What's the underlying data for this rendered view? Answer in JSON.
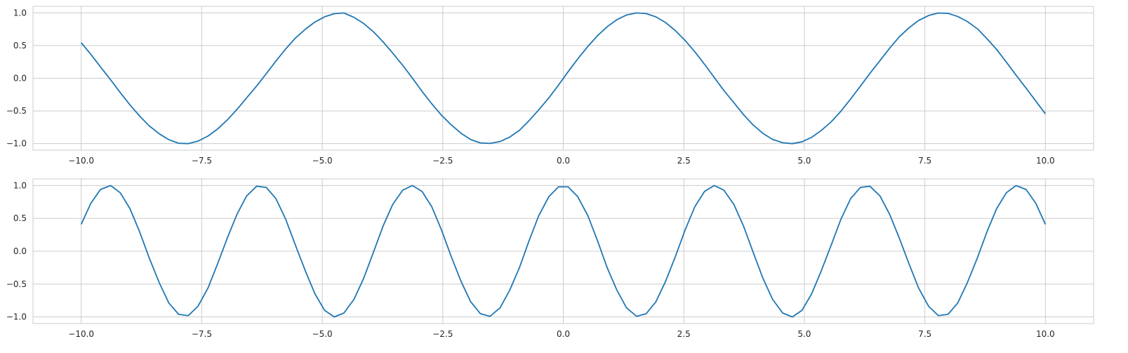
{
  "chart_data": [
    {
      "type": "line",
      "title": "",
      "xlabel": "",
      "ylabel": "",
      "xlim": [
        -11,
        11
      ],
      "ylim": [
        -1.1,
        1.1
      ],
      "xticks": [
        -10,
        -7.5,
        -5,
        -2.5,
        0,
        2.5,
        5,
        7.5,
        10
      ],
      "xtick_labels": [
        "−10.0",
        "−7.5",
        "−5.0",
        "−2.5",
        "0.0",
        "2.5",
        "5.0",
        "7.5",
        "10.0"
      ],
      "yticks": [
        -1,
        -0.5,
        0,
        0.5,
        1
      ],
      "ytick_labels": [
        "−1.0",
        "−0.5",
        "0.0",
        "0.5",
        "1.0"
      ],
      "grid": true,
      "series": [
        {
          "color": "#1f77b4",
          "x": [
            -10,
            -9.8,
            -9.6,
            -9.39,
            -9.19,
            -8.99,
            -8.79,
            -8.59,
            -8.38,
            -8.18,
            -7.98,
            -7.78,
            -7.58,
            -7.37,
            -7.17,
            -6.97,
            -6.77,
            -6.57,
            -6.36,
            -6.16,
            -5.96,
            -5.76,
            -5.56,
            -5.35,
            -5.15,
            -4.95,
            -4.75,
            -4.55,
            -4.34,
            -4.14,
            -3.94,
            -3.74,
            -3.54,
            -3.33,
            -3.13,
            -2.93,
            -2.73,
            -2.53,
            -2.32,
            -2.12,
            -1.92,
            -1.72,
            -1.52,
            -1.31,
            -1.11,
            -0.91,
            -0.71,
            -0.51,
            -0.3,
            -0.1,
            0.1,
            0.3,
            0.51,
            0.71,
            0.91,
            1.11,
            1.31,
            1.52,
            1.72,
            1.92,
            2.12,
            2.32,
            2.53,
            2.73,
            2.93,
            3.13,
            3.33,
            3.54,
            3.74,
            3.94,
            4.14,
            4.34,
            4.55,
            4.75,
            4.95,
            5.15,
            5.35,
            5.56,
            5.76,
            5.96,
            6.16,
            6.36,
            6.57,
            6.77,
            6.97,
            7.17,
            7.37,
            7.58,
            7.78,
            7.98,
            8.18,
            8.38,
            8.59,
            8.79,
            8.99,
            9.19,
            9.39,
            9.6,
            9.8,
            10
          ],
          "y": [
            0.544,
            0.366,
            0.174,
            -0.024,
            -0.219,
            -0.406,
            -0.577,
            -0.727,
            -0.85,
            -0.94,
            -0.994,
            -1.0,
            -0.962,
            -0.884,
            -0.775,
            -0.638,
            -0.478,
            -0.301,
            -0.117,
            0.071,
            0.264,
            0.447,
            0.612,
            0.75,
            0.861,
            0.94,
            0.987,
            0.998,
            0.93,
            0.837,
            0.712,
            0.558,
            0.386,
            0.197,
            0.002,
            -0.2,
            -0.389,
            -0.563,
            -0.716,
            -0.842,
            -0.938,
            -0.989,
            -0.997,
            -0.967,
            -0.899,
            -0.797,
            -0.648,
            -0.484,
            -0.3,
            -0.105,
            0.1,
            0.296,
            0.487,
            0.651,
            0.788,
            0.895,
            0.967,
            0.999,
            0.989,
            0.939,
            0.853,
            0.731,
            0.576,
            0.403,
            0.213,
            0.013,
            -0.187,
            -0.375,
            -0.558,
            -0.716,
            -0.842,
            -0.935,
            -0.986,
            -1.0,
            -0.972,
            -0.904,
            -0.799,
            -0.664,
            -0.503,
            -0.317,
            -0.123,
            0.074,
            0.272,
            0.46,
            0.634,
            0.771,
            0.884,
            0.96,
            0.998,
            0.992,
            0.945,
            0.868,
            0.756,
            0.604,
            0.439,
            0.246,
            0.049,
            -0.152,
            -0.348,
            -0.544
          ]
        }
      ]
    },
    {
      "type": "line",
      "title": "",
      "xlabel": "",
      "ylabel": "",
      "xlim": [
        -11,
        11
      ],
      "ylim": [
        -1.1,
        1.1
      ],
      "xticks": [
        -10,
        -7.5,
        -5,
        -2.5,
        0,
        2.5,
        5,
        7.5,
        10
      ],
      "xtick_labels": [
        "−10.0",
        "−7.5",
        "−5.0",
        "−2.5",
        "0.0",
        "2.5",
        "5.0",
        "7.5",
        "10.0"
      ],
      "yticks": [
        -1,
        -0.5,
        0,
        0.5,
        1
      ],
      "ytick_labels": [
        "−1.0",
        "−0.5",
        "0.0",
        "0.5",
        "1.0"
      ],
      "grid": true,
      "series": [
        {
          "color": "#1f77b4",
          "x": [
            -10,
            -9.8,
            -9.6,
            -9.39,
            -9.19,
            -8.99,
            -8.79,
            -8.59,
            -8.38,
            -8.18,
            -7.98,
            -7.78,
            -7.58,
            -7.37,
            -7.17,
            -6.97,
            -6.77,
            -6.57,
            -6.36,
            -6.16,
            -5.96,
            -5.76,
            -5.56,
            -5.35,
            -5.15,
            -4.95,
            -4.75,
            -4.55,
            -4.34,
            -4.14,
            -3.94,
            -3.74,
            -3.54,
            -3.33,
            -3.13,
            -2.93,
            -2.73,
            -2.53,
            -2.32,
            -2.12,
            -1.92,
            -1.72,
            -1.52,
            -1.31,
            -1.11,
            -0.91,
            -0.71,
            -0.51,
            -0.3,
            -0.1,
            0.1,
            0.3,
            0.51,
            0.71,
            0.91,
            1.11,
            1.31,
            1.52,
            1.72,
            1.92,
            2.12,
            2.32,
            2.53,
            2.73,
            2.93,
            3.13,
            3.33,
            3.54,
            3.74,
            3.94,
            4.14,
            4.34,
            4.55,
            4.75,
            4.95,
            5.15,
            5.35,
            5.56,
            5.76,
            5.96,
            6.16,
            6.36,
            6.57,
            6.77,
            6.97,
            7.17,
            7.37,
            7.58,
            7.78,
            7.98,
            8.18,
            8.38,
            8.59,
            8.79,
            8.99,
            9.19,
            9.39,
            9.6,
            9.8,
            10
          ],
          "y": [
            0.41,
            0.73,
            0.94,
            1.0,
            0.89,
            0.65,
            0.3,
            -0.1,
            -0.48,
            -0.79,
            -0.96,
            -0.98,
            -0.84,
            -0.56,
            -0.19,
            0.2,
            0.56,
            0.84,
            0.99,
            0.97,
            0.8,
            0.49,
            0.1,
            -0.3,
            -0.65,
            -0.9,
            -1.0,
            -0.94,
            -0.73,
            -0.41,
            -0.02,
            0.38,
            0.71,
            0.93,
            1.0,
            0.91,
            0.68,
            0.33,
            -0.09,
            -0.46,
            -0.77,
            -0.95,
            -0.99,
            -0.86,
            -0.59,
            -0.25,
            0.16,
            0.54,
            0.83,
            0.98,
            0.98,
            0.83,
            0.54,
            0.16,
            -0.25,
            -0.59,
            -0.86,
            -0.99,
            -0.95,
            -0.77,
            -0.46,
            -0.09,
            0.33,
            0.68,
            0.91,
            1.0,
            0.93,
            0.71,
            0.38,
            -0.02,
            -0.41,
            -0.73,
            -0.94,
            -1.0,
            -0.9,
            -0.65,
            -0.3,
            0.1,
            0.49,
            0.8,
            0.97,
            0.99,
            0.84,
            0.56,
            0.2,
            -0.19,
            -0.56,
            -0.84,
            -0.98,
            -0.96,
            -0.79,
            -0.48,
            -0.1,
            0.3,
            0.65,
            0.89,
            1.0,
            0.94,
            0.73,
            0.41
          ]
        }
      ]
    }
  ]
}
